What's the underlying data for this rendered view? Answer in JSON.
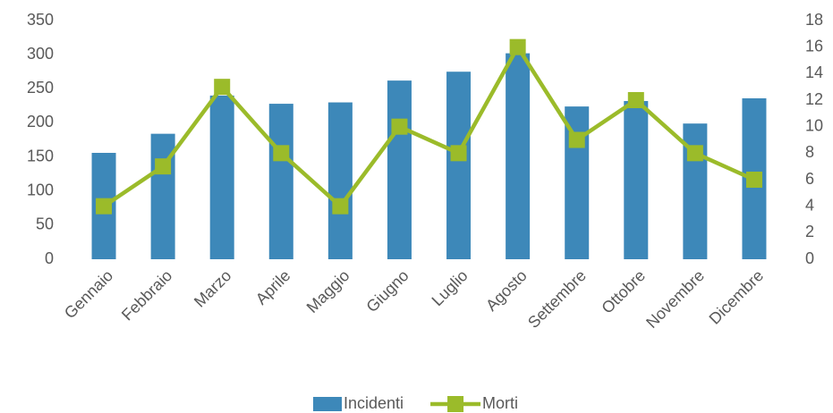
{
  "chart_data": {
    "type": "bar",
    "categories": [
      "Gennaio",
      "Febbraio",
      "Marzo",
      "Aprile",
      "Maggio",
      "Giugno",
      "Luglio",
      "Agosto",
      "Settembre",
      "Ottobre",
      "Novembre",
      "Dicembre"
    ],
    "series": [
      {
        "name": "Incidenti",
        "type": "bar",
        "color": "#3d88b9",
        "values": [
          156,
          184,
          240,
          228,
          230,
          262,
          275,
          302,
          224,
          232,
          199,
          236
        ]
      },
      {
        "name": "Morti",
        "type": "line",
        "axis": "y2",
        "color": "#9bbb2a",
        "values": [
          4,
          7,
          13,
          8,
          4,
          10,
          8,
          16,
          9,
          12,
          8,
          6
        ]
      }
    ],
    "ylim": [
      0,
      350
    ],
    "yticks": [
      0,
      50,
      100,
      150,
      200,
      250,
      300,
      350
    ],
    "y2lim": [
      0,
      18
    ],
    "y2ticks": [
      0,
      2,
      4,
      6,
      8,
      10,
      12,
      14,
      16,
      18
    ],
    "grid": false,
    "legend": "bottom"
  }
}
